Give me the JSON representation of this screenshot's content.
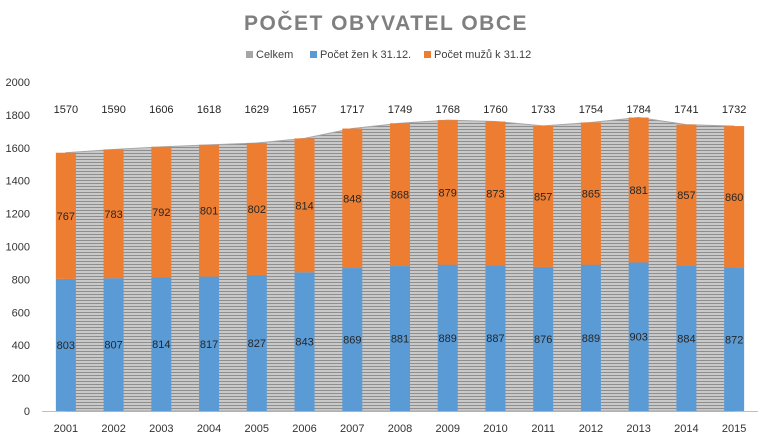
{
  "chart_data": {
    "type": "bar",
    "title": "POČET OBYVATEL OBCE",
    "categories": [
      "2001",
      "2002",
      "2003",
      "2004",
      "2005",
      "2006",
      "2007",
      "2008",
      "2009",
      "2010",
      "2011",
      "2012",
      "2013",
      "2014",
      "2015"
    ],
    "series": [
      {
        "name": "Celkem",
        "kind": "area",
        "color": "#a6a6a6",
        "values": [
          1570,
          1590,
          1606,
          1618,
          1629,
          1657,
          1717,
          1749,
          1768,
          1760,
          1733,
          1754,
          1784,
          1741,
          1732
        ]
      },
      {
        "name": "Počet žen k 31.12.",
        "kind": "stacked-bar",
        "color": "#5b9bd5",
        "values": [
          803,
          807,
          814,
          817,
          827,
          843,
          869,
          881,
          889,
          887,
          876,
          889,
          903,
          884,
          872
        ]
      },
      {
        "name": "Počet mužů k 31.12",
        "kind": "stacked-bar",
        "color": "#ed7d31",
        "values": [
          767,
          783,
          792,
          801,
          802,
          814,
          848,
          868,
          879,
          873,
          857,
          865,
          881,
          857,
          860
        ]
      }
    ],
    "ylim": [
      0,
      2000
    ],
    "yticks": [
      0,
      200,
      400,
      600,
      800,
      1000,
      1200,
      1400,
      1600,
      1800,
      2000
    ],
    "grid": false,
    "legend": "top-center"
  }
}
